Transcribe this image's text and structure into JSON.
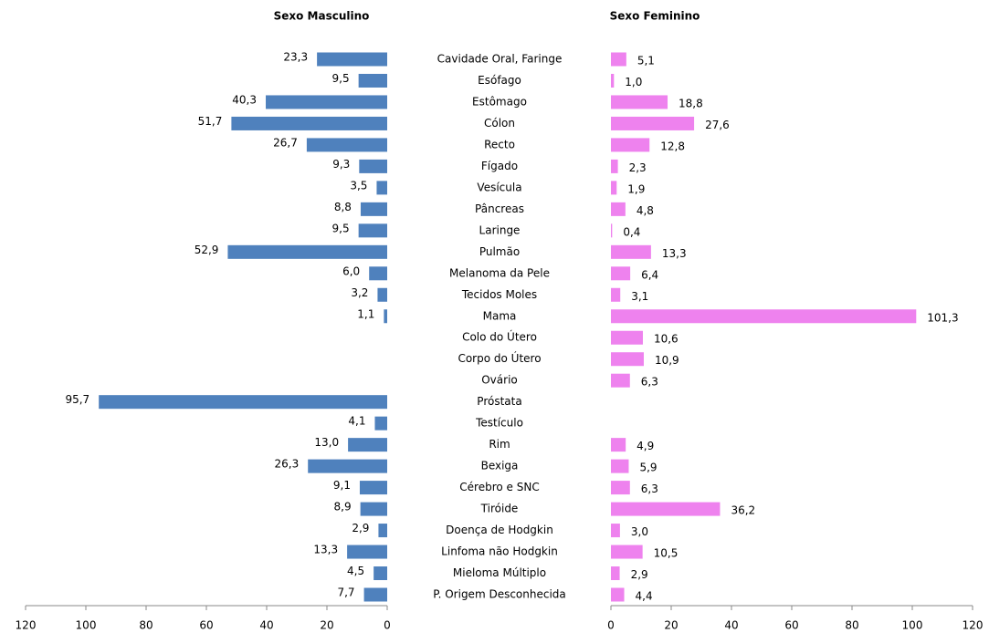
{
  "chart_data": {
    "type": "butterfly",
    "categories": [
      "Cavidade Oral, Faringe",
      "Esófago",
      "Estômago",
      "Cólon",
      "Recto",
      "Fígado",
      "Vesícula",
      "Pâncreas",
      "Laringe",
      "Pulmão",
      "Melanoma da Pele",
      "Tecidos Moles",
      "Mama",
      "Colo do Útero",
      "Corpo do Útero",
      "Ovário",
      "Próstata",
      "Testículo",
      "Rim",
      "Bexiga",
      "Cérebro e SNC",
      "Tiróide",
      "Doença de Hodgkin",
      "Linfoma não Hodgkin",
      "Mieloma Múltiplo",
      "P. Origem Desconhecida"
    ],
    "series": [
      {
        "name": "Sexo Masculino",
        "color": "#4f81bd",
        "values": [
          23.3,
          9.5,
          40.3,
          51.7,
          26.7,
          9.3,
          3.5,
          8.8,
          9.5,
          52.9,
          6.0,
          3.2,
          1.1,
          null,
          null,
          null,
          95.7,
          4.1,
          13.0,
          26.3,
          9.1,
          8.9,
          2.9,
          13.3,
          4.5,
          7.7
        ],
        "value_labels": [
          "23,3",
          "9,5",
          "40,3",
          "51,7",
          "26,7",
          "9,3",
          "3,5",
          "8,8",
          "9,5",
          "52,9",
          "6,0",
          "3,2",
          "1,1",
          null,
          null,
          null,
          "95,7",
          "4,1",
          "13,0",
          "26,3",
          "9,1",
          "8,9",
          "2,9",
          "13,3",
          "4,5",
          "7,7"
        ]
      },
      {
        "name": "Sexo Feminino",
        "color": "#ee82ee",
        "values": [
          5.1,
          1.0,
          18.8,
          27.6,
          12.8,
          2.3,
          1.9,
          4.8,
          0.4,
          13.3,
          6.4,
          3.1,
          101.3,
          10.6,
          10.9,
          6.3,
          null,
          null,
          4.9,
          5.9,
          6.3,
          36.2,
          3.0,
          10.5,
          2.9,
          4.4
        ],
        "value_labels": [
          "5,1",
          "1,0",
          "18,8",
          "27,6",
          "12,8",
          "2,3",
          "1,9",
          "4,8",
          "0,4",
          "13,3",
          "6,4",
          "3,1",
          "101,3",
          "10,6",
          "10,9",
          "6,3",
          null,
          null,
          "4,9",
          "5,9",
          "6,3",
          "36,2",
          "3,0",
          "10,5",
          "2,9",
          "4,4"
        ]
      }
    ],
    "xlim": [
      0,
      120
    ],
    "xticks": [
      0,
      20,
      40,
      60,
      80,
      100,
      120
    ]
  }
}
